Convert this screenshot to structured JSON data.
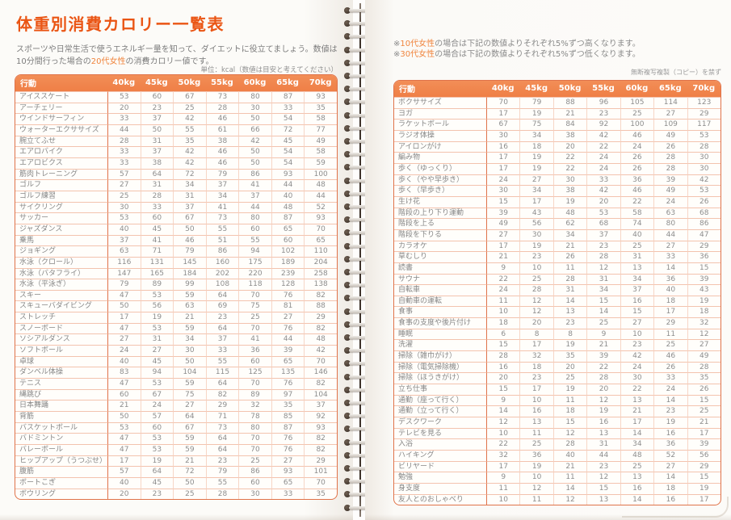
{
  "colors": {
    "title_orange": "#ea5514",
    "header_bg": "#ef7f46",
    "table_border": "#e0734a",
    "highlight_orange": "#f0853e",
    "body_text_gray": "#8d8d8d"
  },
  "left_page": {
    "title": "体重別消費カロリー一覧表",
    "subtitle_pre": "スポーツや日常生活で使うエネルギー量を知って、ダイエットに役立てましょう。数値は10分間行った場合の",
    "subtitle_highlight": "20代女性",
    "subtitle_post": "の消費カロリー値です。",
    "unit_note": "単位：kcal（数値は目安と考えてください）",
    "table": {
      "headers": [
        "行動",
        "40kg",
        "45kg",
        "50kg",
        "55kg",
        "60kg",
        "65kg",
        "70kg"
      ],
      "rows": [
        {
          "label": "アイススケート",
          "values": [
            53,
            60,
            67,
            73,
            80,
            87,
            93
          ]
        },
        {
          "label": "アーチェリー",
          "values": [
            20,
            23,
            25,
            28,
            30,
            33,
            35
          ]
        },
        {
          "label": "ウインドサーフィン",
          "values": [
            33,
            37,
            42,
            46,
            50,
            54,
            58
          ]
        },
        {
          "label": "ウォーターエクササイズ",
          "values": [
            44,
            50,
            55,
            61,
            66,
            72,
            77
          ]
        },
        {
          "label": "腕立てふせ",
          "values": [
            28,
            31,
            35,
            38,
            42,
            45,
            49
          ]
        },
        {
          "label": "エアロバイク",
          "values": [
            33,
            37,
            42,
            46,
            50,
            54,
            58
          ]
        },
        {
          "label": "エアロビクス",
          "values": [
            33,
            38,
            42,
            46,
            50,
            54,
            59
          ]
        },
        {
          "label": "筋肉トレーニング",
          "values": [
            57,
            64,
            72,
            79,
            86,
            93,
            100
          ]
        },
        {
          "label": "ゴルフ",
          "values": [
            27,
            31,
            34,
            37,
            41,
            44,
            48
          ]
        },
        {
          "label": "ゴルフ練習",
          "values": [
            25,
            28,
            31,
            34,
            37,
            40,
            44
          ]
        },
        {
          "label": "サイクリング",
          "values": [
            30,
            33,
            37,
            41,
            44,
            48,
            52
          ]
        },
        {
          "label": "サッカー",
          "values": [
            53,
            60,
            67,
            73,
            80,
            87,
            93
          ]
        },
        {
          "label": "ジャズダンス",
          "values": [
            40,
            45,
            50,
            55,
            60,
            65,
            70
          ]
        },
        {
          "label": "乗馬",
          "values": [
            37,
            41,
            46,
            51,
            55,
            60,
            65
          ]
        },
        {
          "label": "ジョギング",
          "values": [
            63,
            71,
            79,
            86,
            94,
            102,
            110
          ]
        },
        {
          "label": "水泳（クロール）",
          "values": [
            116,
            131,
            145,
            160,
            175,
            189,
            204
          ]
        },
        {
          "label": "水泳（バタフライ）",
          "values": [
            147,
            165,
            184,
            202,
            220,
            239,
            258
          ]
        },
        {
          "label": "水泳（平泳ぎ）",
          "values": [
            79,
            89,
            99,
            108,
            118,
            128,
            138
          ]
        },
        {
          "label": "スキー",
          "values": [
            47,
            53,
            59,
            64,
            70,
            76,
            82
          ]
        },
        {
          "label": "スキューバダイビング",
          "values": [
            50,
            56,
            63,
            69,
            75,
            81,
            88
          ]
        },
        {
          "label": "ストレッチ",
          "values": [
            17,
            19,
            21,
            23,
            25,
            27,
            29
          ]
        },
        {
          "label": "スノーボード",
          "values": [
            47,
            53,
            59,
            64,
            70,
            76,
            82
          ]
        },
        {
          "label": "ソシアルダンス",
          "values": [
            27,
            31,
            34,
            37,
            41,
            44,
            48
          ]
        },
        {
          "label": "ソフトボール",
          "values": [
            24,
            27,
            30,
            33,
            36,
            39,
            42
          ]
        },
        {
          "label": "卓球",
          "values": [
            40,
            45,
            50,
            55,
            60,
            65,
            70
          ]
        },
        {
          "label": "ダンベル体操",
          "values": [
            83,
            94,
            104,
            115,
            125,
            135,
            146
          ]
        },
        {
          "label": "テニス",
          "values": [
            47,
            53,
            59,
            64,
            70,
            76,
            82
          ]
        },
        {
          "label": "縄跳び",
          "values": [
            60,
            67,
            75,
            82,
            89,
            97,
            104
          ]
        },
        {
          "label": "日本舞踊",
          "values": [
            21,
            24,
            27,
            29,
            32,
            35,
            37
          ]
        },
        {
          "label": "背筋",
          "values": [
            50,
            57,
            64,
            71,
            78,
            85,
            92
          ]
        },
        {
          "label": "バスケットボール",
          "values": [
            53,
            60,
            67,
            73,
            80,
            87,
            93
          ]
        },
        {
          "label": "バドミントン",
          "values": [
            47,
            53,
            59,
            64,
            70,
            76,
            82
          ]
        },
        {
          "label": "バレーボール",
          "values": [
            47,
            53,
            59,
            64,
            70,
            76,
            82
          ]
        },
        {
          "label": "ヒップアップ（うつぶせ）",
          "values": [
            17,
            19,
            21,
            23,
            25,
            27,
            29
          ]
        },
        {
          "label": "腹筋",
          "values": [
            57,
            64,
            72,
            79,
            86,
            93,
            101
          ]
        },
        {
          "label": "ボートこぎ",
          "values": [
            40,
            45,
            50,
            55,
            60,
            65,
            70
          ]
        },
        {
          "label": "ボウリング",
          "values": [
            20,
            23,
            25,
            28,
            30,
            33,
            35
          ]
        }
      ]
    }
  },
  "right_page": {
    "note1": {
      "prefix": "※",
      "highlight": "10代女性",
      "text": "の場合は下記の数値よりそれぞれ5%ずつ高くなります。"
    },
    "note2": {
      "prefix": "※",
      "highlight": "30代女性",
      "text": "の場合は下記の数値よりそれぞれ5%ずつ低くなります。"
    },
    "copyright_note": "無断複写複製（コピー）を禁ず",
    "table": {
      "headers": [
        "行動",
        "40kg",
        "45kg",
        "50kg",
        "55kg",
        "60kg",
        "65kg",
        "70kg"
      ],
      "rows": [
        {
          "label": "ボクササイズ",
          "values": [
            70,
            79,
            88,
            96,
            105,
            114,
            123
          ]
        },
        {
          "label": "ヨガ",
          "values": [
            17,
            19,
            21,
            23,
            25,
            27,
            29
          ]
        },
        {
          "label": "ラケットボール",
          "values": [
            67,
            75,
            84,
            92,
            100,
            109,
            117
          ]
        },
        {
          "label": "ラジオ体操",
          "values": [
            30,
            34,
            38,
            42,
            46,
            49,
            53
          ]
        },
        {
          "label": "アイロンがけ",
          "values": [
            16,
            18,
            20,
            22,
            24,
            26,
            28
          ]
        },
        {
          "label": "編み物",
          "values": [
            17,
            19,
            22,
            24,
            26,
            28,
            30
          ]
        },
        {
          "label": "歩く（ゆっくり）",
          "values": [
            17,
            19,
            22,
            24,
            26,
            28,
            30
          ]
        },
        {
          "label": "歩く（やや早歩き）",
          "values": [
            24,
            27,
            30,
            33,
            36,
            39,
            42
          ]
        },
        {
          "label": "歩く（早歩き）",
          "values": [
            30,
            34,
            38,
            42,
            46,
            49,
            53
          ]
        },
        {
          "label": "生け花",
          "values": [
            15,
            17,
            19,
            20,
            22,
            24,
            26
          ]
        },
        {
          "label": "階段の上り下り運動",
          "values": [
            39,
            43,
            48,
            53,
            58,
            63,
            68
          ]
        },
        {
          "label": "階段を上る",
          "values": [
            49,
            56,
            62,
            68,
            74,
            80,
            86
          ]
        },
        {
          "label": "階段を下りる",
          "values": [
            27,
            30,
            34,
            37,
            40,
            44,
            47
          ]
        },
        {
          "label": "カラオケ",
          "values": [
            17,
            19,
            21,
            23,
            25,
            27,
            29
          ]
        },
        {
          "label": "草むしり",
          "values": [
            21,
            23,
            26,
            28,
            31,
            33,
            36
          ]
        },
        {
          "label": "読書",
          "values": [
            9,
            10,
            11,
            12,
            13,
            14,
            15
          ]
        },
        {
          "label": "サウナ",
          "values": [
            22,
            25,
            28,
            31,
            34,
            36,
            39
          ]
        },
        {
          "label": "自転車",
          "values": [
            24,
            28,
            31,
            34,
            37,
            40,
            43
          ]
        },
        {
          "label": "自動車の運転",
          "values": [
            11,
            12,
            14,
            15,
            16,
            18,
            19
          ]
        },
        {
          "label": "食事",
          "values": [
            10,
            12,
            13,
            14,
            15,
            17,
            18
          ]
        },
        {
          "label": "食事の支度や後片付け",
          "values": [
            18,
            20,
            23,
            25,
            27,
            29,
            32
          ]
        },
        {
          "label": "睡眠",
          "values": [
            6,
            8,
            8,
            9,
            10,
            11,
            12
          ]
        },
        {
          "label": "洗濯",
          "values": [
            15,
            17,
            19,
            21,
            23,
            25,
            27
          ]
        },
        {
          "label": "掃除（雑巾がけ）",
          "values": [
            28,
            32,
            35,
            39,
            42,
            46,
            49
          ]
        },
        {
          "label": "掃除（電気掃除機）",
          "values": [
            16,
            18,
            20,
            22,
            24,
            26,
            28
          ]
        },
        {
          "label": "掃除（ほうきがけ）",
          "values": [
            20,
            23,
            25,
            28,
            30,
            33,
            35
          ]
        },
        {
          "label": "立ち仕事",
          "values": [
            15,
            17,
            19,
            20,
            22,
            24,
            26
          ]
        },
        {
          "label": "通勤（座って行く）",
          "values": [
            9,
            10,
            11,
            12,
            13,
            14,
            15
          ]
        },
        {
          "label": "通勤（立って行く）",
          "values": [
            14,
            16,
            18,
            19,
            21,
            23,
            25
          ]
        },
        {
          "label": "デスクワーク",
          "values": [
            12,
            13,
            15,
            16,
            17,
            19,
            21
          ]
        },
        {
          "label": "テレビを見る",
          "values": [
            10,
            11,
            12,
            13,
            14,
            16,
            17
          ]
        },
        {
          "label": "入浴",
          "values": [
            22,
            25,
            28,
            31,
            34,
            36,
            39
          ]
        },
        {
          "label": "ハイキング",
          "values": [
            32,
            36,
            40,
            44,
            48,
            52,
            56
          ]
        },
        {
          "label": "ビリヤード",
          "values": [
            17,
            19,
            21,
            23,
            25,
            27,
            29
          ]
        },
        {
          "label": "勉強",
          "values": [
            9,
            10,
            11,
            12,
            13,
            14,
            15
          ]
        },
        {
          "label": "身支度",
          "values": [
            11,
            12,
            14,
            15,
            16,
            18,
            19
          ]
        },
        {
          "label": "友人とのおしゃべり",
          "values": [
            10,
            11,
            12,
            13,
            14,
            16,
            17
          ]
        }
      ]
    }
  }
}
